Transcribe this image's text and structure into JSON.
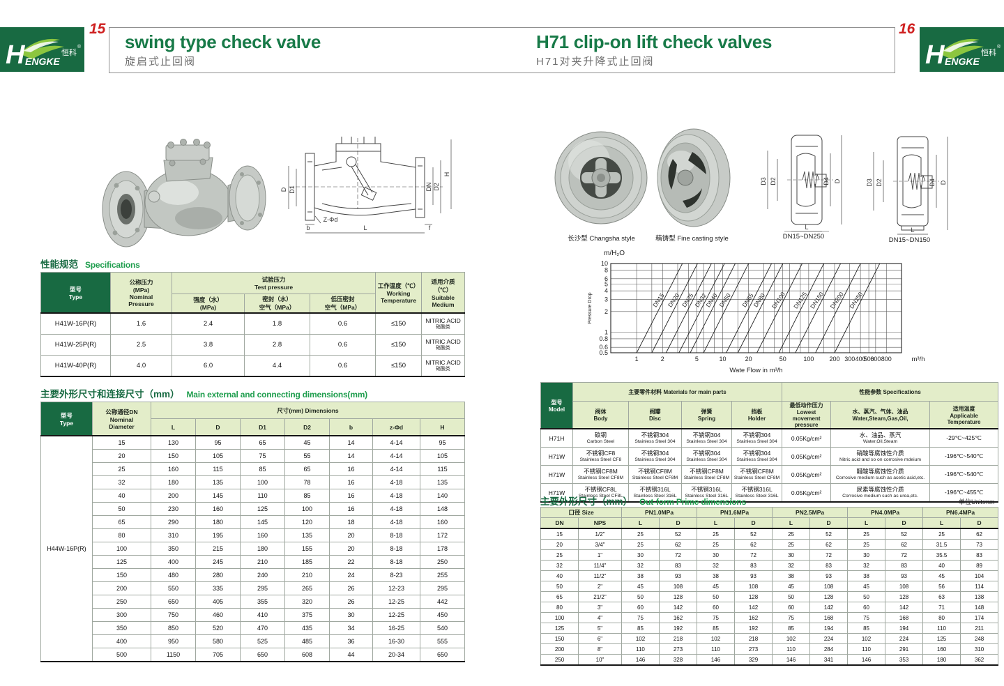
{
  "logo": {
    "h": "H",
    "rest": "ENGKE",
    "zh": "恒科",
    "reg": "®"
  },
  "header": {
    "left_page_number": "15",
    "right_page_number": "16",
    "left_title_en": "swing type check valve",
    "left_title_zh": "旋启式止回阀",
    "right_title_en": "H71 clip-on lift check valves",
    "right_title_zh": "H71对夹升降式止回阀"
  },
  "left": {
    "spec_section": {
      "zh": "性能规范",
      "en": "Specifications"
    },
    "spec_table": {
      "headers": {
        "type": "型号\nType",
        "nominal": "公称压力\n(MPa)\nNominal\nPressure",
        "test": "试验压力\nTest pressure",
        "strength": "强度（水）\n(MPa)",
        "seal": "密封（水）\n空气（MPa）",
        "lowseal": "低压密封\n空气（MPa）",
        "working": "工作温度（℃）\nWorking\nTemperature",
        "medium": "适用介质（℃）\nSuitable\nMedium"
      },
      "rows": [
        [
          "H41W-16P(R)",
          "1.6",
          "2.4",
          "1.8",
          "0.6",
          "≤150",
          "NITRIC ACID\n硝酸类"
        ],
        [
          "H41W-25P(R)",
          "2.5",
          "3.8",
          "2.8",
          "0.6",
          "≤150",
          "NITRIC ACID\n硝酸类"
        ],
        [
          "H41W-40P(R)",
          "4.0",
          "6.0",
          "4.4",
          "0.6",
          "≤150",
          "NITRIC ACID\n硝酸类"
        ]
      ]
    },
    "dim_section": {
      "zh": "主要外形尺寸和连接尺寸（mm）",
      "en": "Main external and connecting dimensions(mm)"
    },
    "dim_table": {
      "headers": {
        "type": "型号\nType",
        "dn": "公称通径DN\nNominal\nDiameter",
        "dims": "尺寸(mm) Dimensions",
        "cols": [
          "L",
          "D",
          "D1",
          "D2",
          "b",
          "z-Φd",
          "H"
        ]
      },
      "type_label": "H44W-16P(R)",
      "rows": [
        [
          "15",
          "130",
          "95",
          "65",
          "45",
          "14",
          "4-14",
          "95"
        ],
        [
          "20",
          "150",
          "105",
          "75",
          "55",
          "14",
          "4-14",
          "105"
        ],
        [
          "25",
          "160",
          "115",
          "85",
          "65",
          "16",
          "4-14",
          "115"
        ],
        [
          "32",
          "180",
          "135",
          "100",
          "78",
          "16",
          "4-18",
          "135"
        ],
        [
          "40",
          "200",
          "145",
          "110",
          "85",
          "16",
          "4-18",
          "140"
        ],
        [
          "50",
          "230",
          "160",
          "125",
          "100",
          "16",
          "4-18",
          "148"
        ],
        [
          "65",
          "290",
          "180",
          "145",
          "120",
          "18",
          "4-18",
          "160"
        ],
        [
          "80",
          "310",
          "195",
          "160",
          "135",
          "20",
          "8-18",
          "172"
        ],
        [
          "100",
          "350",
          "215",
          "180",
          "155",
          "20",
          "8-18",
          "178"
        ],
        [
          "125",
          "400",
          "245",
          "210",
          "185",
          "22",
          "8-18",
          "250"
        ],
        [
          "150",
          "480",
          "280",
          "240",
          "210",
          "24",
          "8-23",
          "255"
        ],
        [
          "200",
          "550",
          "335",
          "295",
          "265",
          "26",
          "12-23",
          "295"
        ],
        [
          "250",
          "650",
          "405",
          "355",
          "320",
          "26",
          "12-25",
          "442"
        ],
        [
          "300",
          "750",
          "460",
          "410",
          "375",
          "30",
          "12-25",
          "450"
        ],
        [
          "350",
          "850",
          "520",
          "470",
          "435",
          "34",
          "16-25",
          "540"
        ],
        [
          "400",
          "950",
          "580",
          "525",
          "485",
          "36",
          "16-30",
          "555"
        ],
        [
          "500",
          "1150",
          "705",
          "650",
          "608",
          "44",
          "20-34",
          "650"
        ]
      ]
    }
  },
  "right": {
    "captions": [
      "长沙型 Changsha style",
      "精铸型 Fine casting style",
      "DN15~DN250",
      "DN15~DN150"
    ],
    "materials_table": {
      "headers": {
        "model": "型号\nModel",
        "main": "主要零件材料 Materials for main parts",
        "specs": "性能参数 Specifications",
        "body": "阀体\nBody",
        "disc": "阀瓣\nDisc",
        "spring": "弹簧\nSpring",
        "holder": "挡板\nHolder",
        "lowest": "最低动作压力\nLowest movement\npressure",
        "medium": "水、蒸汽、气体、油品\nWater,Steam,Gas,Oil,",
        "temp": "适用温度\nApplicable\nTemperature"
      },
      "rows": [
        [
          "H71H",
          "碳钢\nCarbon Steel",
          "不锈钢304\nStainless Steel 304",
          "不锈钢304\nStainless Steel 304",
          "不锈钢304\nStainless Steel 304",
          "0.05Kg/cm²",
          "水、油品、蒸汽\nWater,Oil,Steam",
          "-29℃~425℃"
        ],
        [
          "H71W",
          "不锈钢CF8\nStainless Steel CF8",
          "不锈钢304\nStainless Steel 304",
          "不锈钢304\nStainless Steel 304",
          "不锈钢304\nStainless Steel 304",
          "0.05Kg/cm²",
          "硝酸等腐蚀性介质\nNitric acid and so on corrosive mdeium",
          "-196℃~540℃"
        ],
        [
          "H71W",
          "不锈钢CF8M\nStainless Steel CF8M",
          "不锈钢CF8M\nStainless Steel CF8M",
          "不锈钢CF8M\nStainless Steel CF8M",
          "不锈钢CF8M\nStainless Steel CF8M",
          "0.05Kg/cm²",
          "醋酸等腐蚀性介质\nCorrosive medium such as acetic acid,etc.",
          "-196℃~540℃"
        ],
        [
          "H71W",
          "不锈钢CF8L\nStainless Steel CF8L",
          "不锈钢316L\nStainless Steel 316L",
          "不锈钢316L\nStainless Steel 316L",
          "不锈钢316L\nStainless Steel 316L",
          "0.05Kg/cm²",
          "尿素等腐蚀性介质\nCorrosive medium such as urea,etc.",
          "-196℃~455℃"
        ]
      ]
    },
    "outform_section": {
      "zh": "主要外形尺寸（mm）",
      "en": "Out-form Prime dimensions",
      "unit": "单位Unit:mm"
    },
    "outform_table": {
      "group_headers": {
        "size": "口径 Size",
        "pn": [
          "PN1.0MPa",
          "PN1.6MPa",
          "PN2.5MPa",
          "PN4.0MPa",
          "PN6.4MPa"
        ]
      },
      "sub_headers": [
        "DN",
        "NPS",
        "L",
        "D",
        "L",
        "D",
        "L",
        "D",
        "L",
        "D",
        "L",
        "D"
      ],
      "rows": [
        [
          "15",
          "1/2\"",
          "25",
          "52",
          "25",
          "52",
          "25",
          "52",
          "25",
          "52",
          "25",
          "62"
        ],
        [
          "20",
          "3/4\"",
          "25",
          "62",
          "25",
          "62",
          "25",
          "62",
          "25",
          "62",
          "31.5",
          "73"
        ],
        [
          "25",
          "1\"",
          "30",
          "72",
          "30",
          "72",
          "30",
          "72",
          "30",
          "72",
          "35.5",
          "83"
        ],
        [
          "32",
          "11/4\"",
          "32",
          "83",
          "32",
          "83",
          "32",
          "83",
          "32",
          "83",
          "40",
          "89"
        ],
        [
          "40",
          "11/2\"",
          "38",
          "93",
          "38",
          "93",
          "38",
          "93",
          "38",
          "93",
          "45",
          "104"
        ],
        [
          "50",
          "2\"",
          "45",
          "108",
          "45",
          "108",
          "45",
          "108",
          "45",
          "108",
          "56",
          "114"
        ],
        [
          "65",
          "21/2\"",
          "50",
          "128",
          "50",
          "128",
          "50",
          "128",
          "50",
          "128",
          "63",
          "138"
        ],
        [
          "80",
          "3\"",
          "60",
          "142",
          "60",
          "142",
          "60",
          "142",
          "60",
          "142",
          "71",
          "148"
        ],
        [
          "100",
          "4\"",
          "75",
          "162",
          "75",
          "162",
          "75",
          "168",
          "75",
          "168",
          "80",
          "174"
        ],
        [
          "125",
          "5\"",
          "85",
          "192",
          "85",
          "192",
          "85",
          "194",
          "85",
          "194",
          "110",
          "211"
        ],
        [
          "150",
          "6\"",
          "102",
          "218",
          "102",
          "218",
          "102",
          "224",
          "102",
          "224",
          "125",
          "248"
        ],
        [
          "200",
          "8\"",
          "110",
          "273",
          "110",
          "273",
          "110",
          "284",
          "110",
          "291",
          "160",
          "310"
        ],
        [
          "250",
          "10\"",
          "146",
          "328",
          "146",
          "329",
          "146",
          "341",
          "146",
          "353",
          "180",
          "362"
        ]
      ]
    }
  },
  "drawings": {
    "swing": {
      "d": "D",
      "d1": "D1",
      "h": "H",
      "dn": "DN",
      "d2": "D2",
      "z": "Z-Φd",
      "b": "b",
      "l": "L",
      "f": "f"
    },
    "wafer": {
      "d3": "D3",
      "d2": "D2",
      "d4": "D4",
      "d": "D",
      "l": "L"
    }
  },
  "chart_data": {
    "type": "line",
    "title": "m/H₂O",
    "ylabel": "Pressure Drop",
    "xlabel": "Wate Flow in m³/h",
    "x_unit": "m³/h",
    "x_scale": "log",
    "y_scale": "log",
    "xlim": [
      0.5,
      1200
    ],
    "ylim": [
      0.5,
      10
    ],
    "x_ticks": [
      1,
      2,
      5,
      10,
      20,
      50,
      100,
      200,
      300,
      400,
      500,
      600,
      800
    ],
    "x_minor_gridlines": [
      1.5,
      3,
      4,
      6,
      8,
      15,
      30,
      40,
      60,
      80,
      150
    ],
    "y_ticks": [
      10,
      8,
      6,
      5,
      4,
      3,
      2,
      1,
      0.8,
      0.6,
      0.5
    ],
    "grid": true,
    "series": [
      {
        "name": "DN15",
        "points": [
          [
            1.0,
            0.5
          ],
          [
            3.4,
            10
          ]
        ]
      },
      {
        "name": "DN20",
        "points": [
          [
            1.5,
            0.5
          ],
          [
            5.1,
            10
          ]
        ]
      },
      {
        "name": "DN25",
        "points": [
          [
            2.2,
            0.5
          ],
          [
            7.4,
            10
          ]
        ]
      },
      {
        "name": "DN32",
        "points": [
          [
            3.1,
            0.5
          ],
          [
            10.5,
            10
          ]
        ]
      },
      {
        "name": "DN40",
        "points": [
          [
            4.2,
            0.5
          ],
          [
            14,
            10
          ]
        ]
      },
      {
        "name": "DN50",
        "points": [
          [
            6,
            0.5
          ],
          [
            20,
            10
          ]
        ]
      },
      {
        "name": "DN65",
        "points": [
          [
            11,
            0.5
          ],
          [
            37,
            10
          ]
        ]
      },
      {
        "name": "DN80",
        "points": [
          [
            15,
            0.5
          ],
          [
            50,
            10
          ]
        ]
      },
      {
        "name": "DN100",
        "points": [
          [
            25,
            0.5
          ],
          [
            84,
            10
          ]
        ]
      },
      {
        "name": "DN125",
        "points": [
          [
            45,
            0.5
          ],
          [
            150,
            10
          ]
        ]
      },
      {
        "name": "DN150",
        "points": [
          [
            70,
            0.5
          ],
          [
            235,
            10
          ]
        ]
      },
      {
        "name": "DN200",
        "points": [
          [
            120,
            0.5
          ],
          [
            400,
            10
          ]
        ]
      },
      {
        "name": "DN250",
        "points": [
          [
            200,
            0.5
          ],
          [
            670,
            10
          ]
        ]
      }
    ]
  }
}
